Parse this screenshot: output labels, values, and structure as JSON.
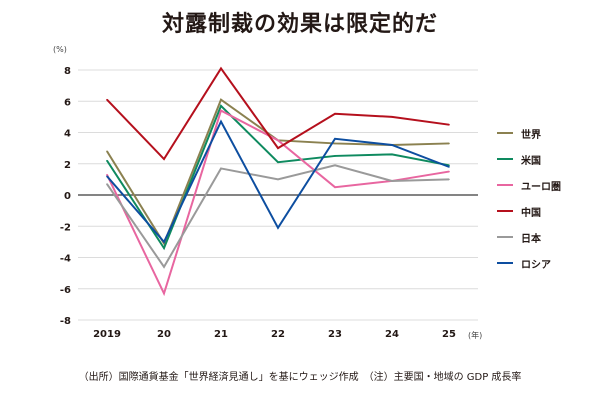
{
  "chart_data": {
    "type": "line",
    "title": "対露制裁の効果は限定的だ",
    "ylabel": "(%)",
    "xlabel": "(年)",
    "categories": [
      "2019",
      "20",
      "21",
      "22",
      "23",
      "24",
      "25"
    ],
    "yticks": [
      "8",
      "6",
      "4",
      "2",
      "0",
      "-2",
      "-4",
      "-6",
      "-8"
    ],
    "ylim": [
      -8,
      8
    ],
    "grid": true,
    "legend_position": "right",
    "series": [
      {
        "name": "世界",
        "color": "#8b8150",
        "values": [
          2.8,
          -3.1,
          6.1,
          3.5,
          3.3,
          3.2,
          3.3
        ]
      },
      {
        "name": "米国",
        "color": "#0e8a5f",
        "values": [
          2.2,
          -3.4,
          5.7,
          2.1,
          2.5,
          2.6,
          1.9
        ]
      },
      {
        "name": "ユーロ圏",
        "color": "#e866a0",
        "values": [
          1.3,
          -6.3,
          5.4,
          3.5,
          0.5,
          0.9,
          1.5
        ]
      },
      {
        "name": "中国",
        "color": "#b5101d",
        "values": [
          6.1,
          2.3,
          8.1,
          3.0,
          5.2,
          5.0,
          4.5
        ]
      },
      {
        "name": "日本",
        "color": "#9a9a9a",
        "values": [
          0.7,
          -4.6,
          1.7,
          1.0,
          1.9,
          0.9,
          1.0
        ]
      },
      {
        "name": "ロシア",
        "color": "#0d4ea0",
        "values": [
          1.2,
          -3.0,
          4.7,
          -2.1,
          3.6,
          3.2,
          1.8
        ]
      }
    ],
    "note": "（出所）国際通貨基金「世界経済見通し」を基にウェッジ作成　（注）主要国・地域の GDP 成長率"
  }
}
